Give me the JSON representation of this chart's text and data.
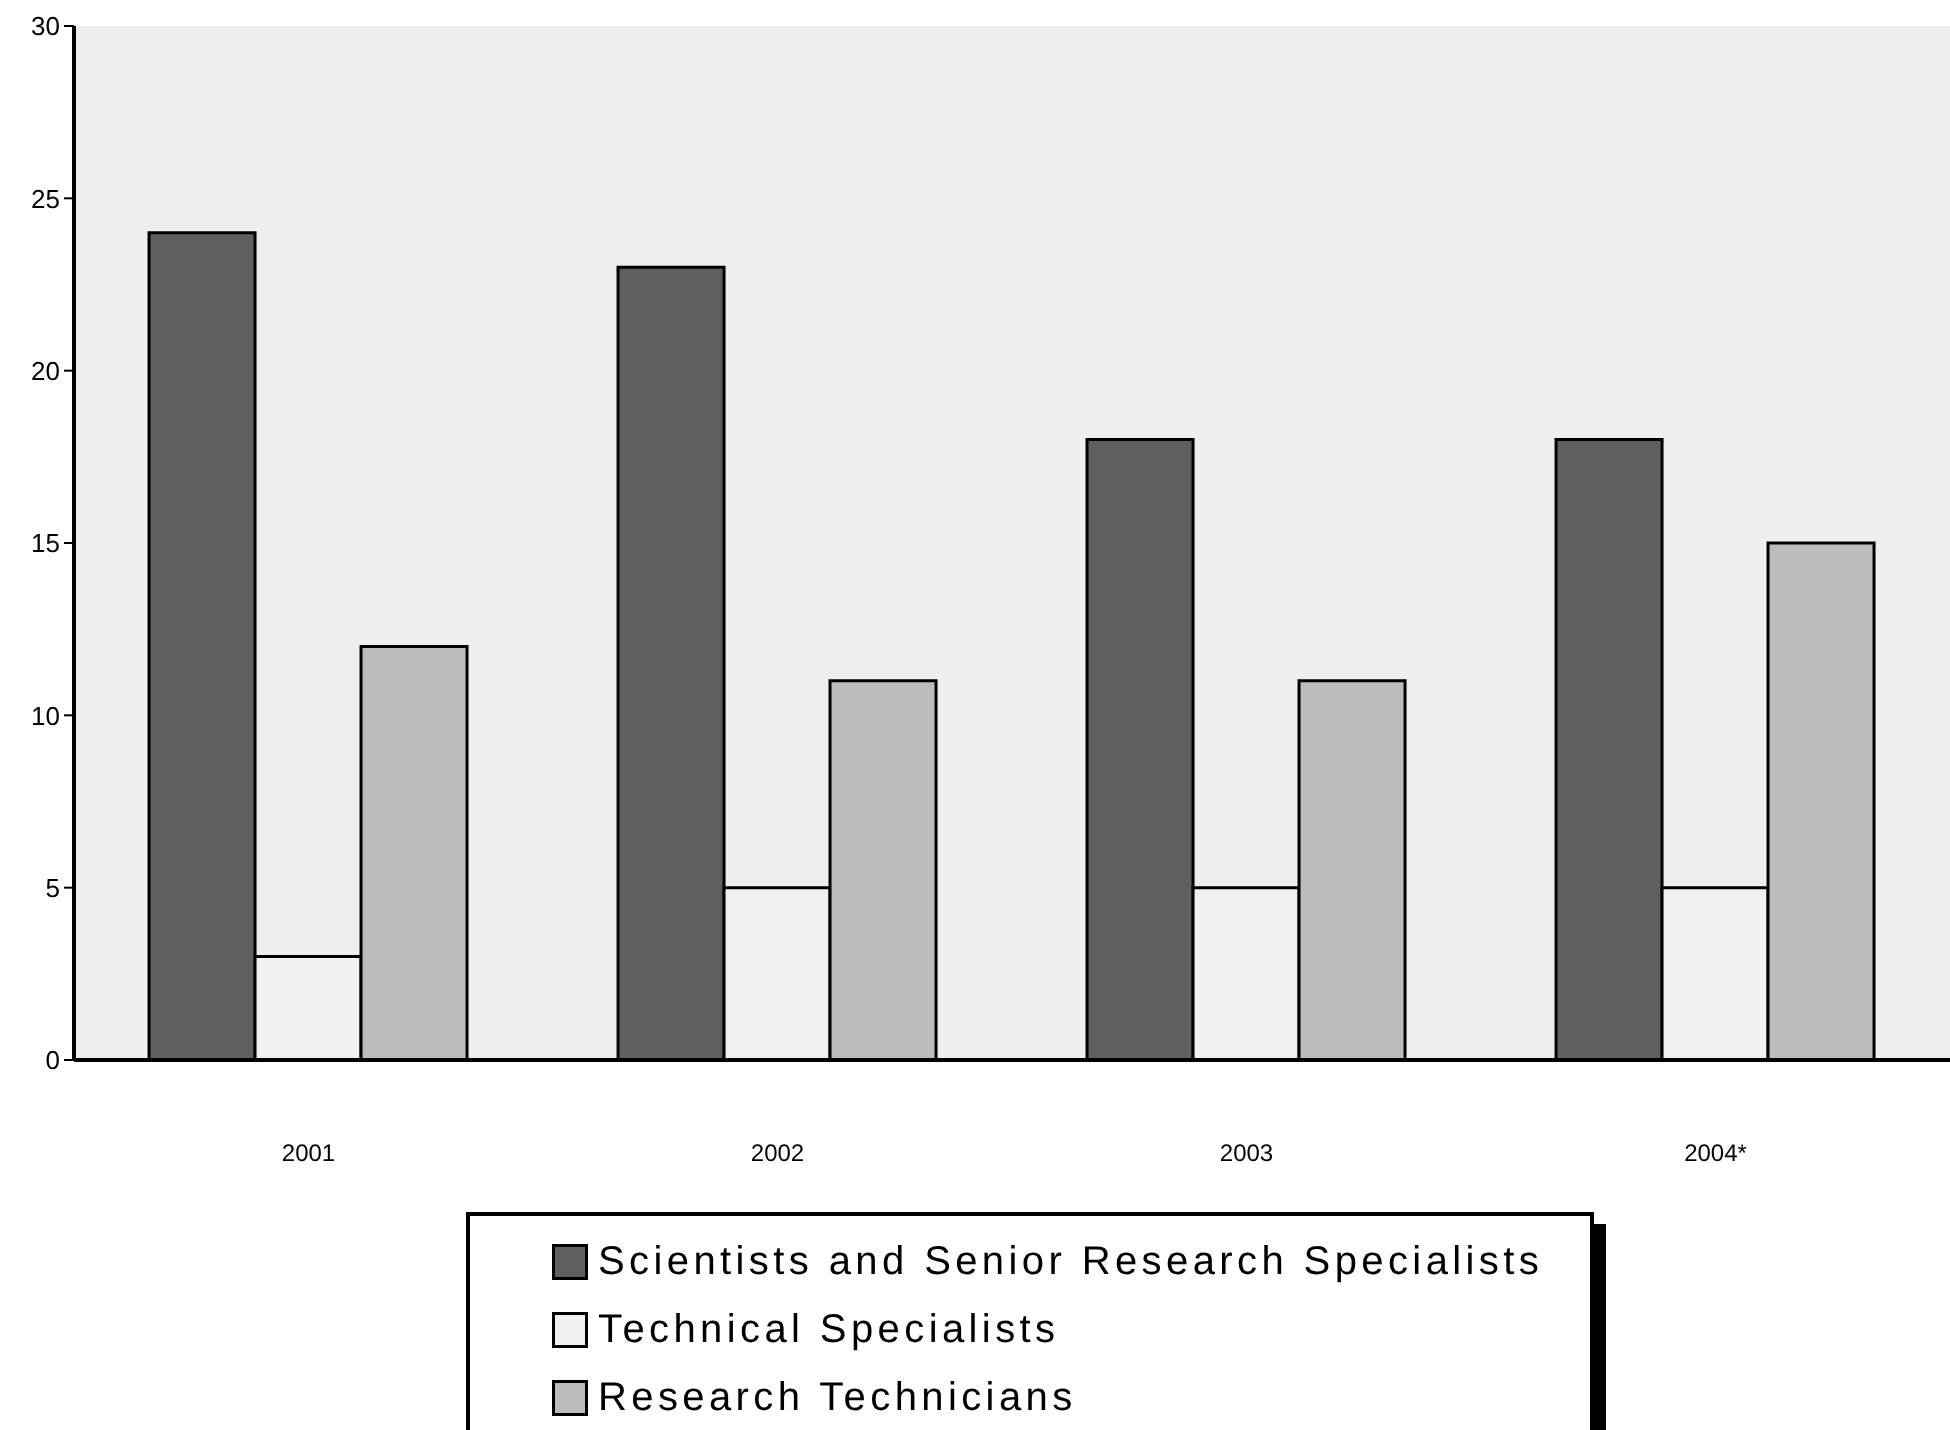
{
  "chart_data": {
    "type": "bar",
    "categories": [
      "2001",
      "2002",
      "2003",
      "2004*"
    ],
    "series": [
      {
        "name": "Scientists and Senior Research Specialists",
        "color": "#5f5f5f",
        "values": [
          24,
          23,
          18,
          18
        ]
      },
      {
        "name": "Technical Specialists",
        "color": "#f0f0f0",
        "values": [
          3,
          5,
          5,
          5
        ]
      },
      {
        "name": "Research Technicians",
        "color": "#bcbcbc",
        "values": [
          12,
          11,
          11,
          15
        ]
      }
    ],
    "ylim": [
      0,
      30
    ],
    "yticks": [
      0,
      5,
      10,
      15,
      20,
      25,
      30
    ],
    "legend": "bottom"
  }
}
